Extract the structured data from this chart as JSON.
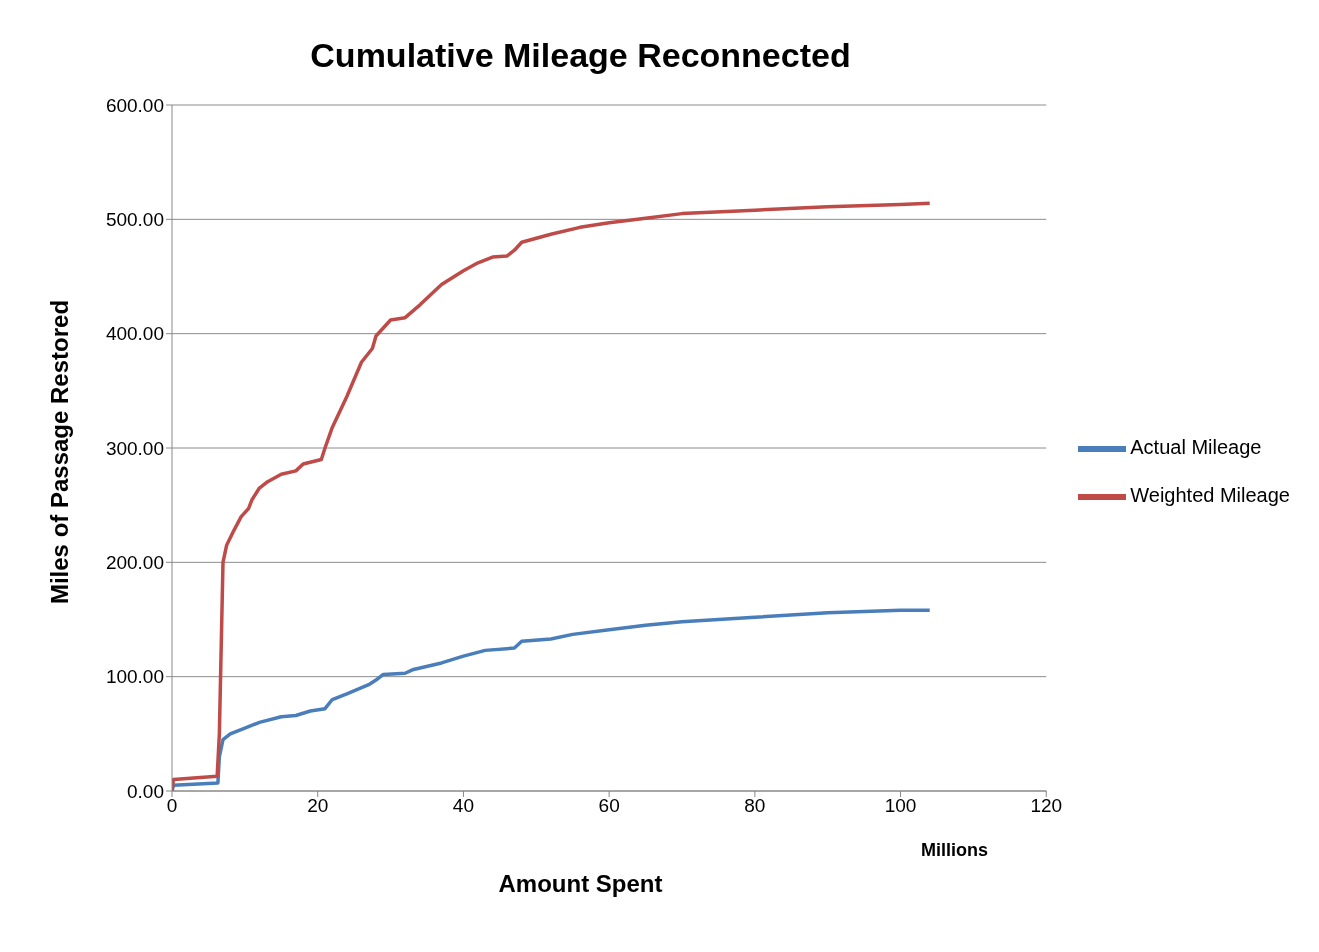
{
  "chart_data": {
    "type": "line",
    "title": "Cumulative Mileage Reconnected",
    "xlabel": "Amount Spent",
    "ylabel": "Miles of Passage Restored",
    "annotations": [
      "Millions"
    ],
    "series": [
      {
        "name": "Actual Mileage",
        "color": "#4a7ebb",
        "x": [
          0,
          0.2,
          6.3,
          6.5,
          7,
          8,
          10,
          12,
          15,
          17,
          19,
          21,
          22,
          24,
          27,
          28,
          29,
          32,
          33,
          37,
          40,
          43,
          47,
          48,
          52,
          55,
          60,
          65,
          70,
          80,
          90,
          100,
          104
        ],
        "values": [
          0,
          5,
          7,
          30,
          45,
          50,
          55,
          60,
          65,
          66,
          70,
          72,
          80,
          85,
          93,
          97,
          102,
          103,
          106,
          112,
          118,
          123,
          125,
          131,
          133,
          137,
          141,
          145,
          148,
          152,
          156,
          158,
          158
        ]
      },
      {
        "name": "Weighted Mileage",
        "color": "#be4b48",
        "x": [
          0,
          0.2,
          6.2,
          6.5,
          7,
          7.5,
          8.5,
          9.5,
          10.5,
          11,
          12,
          13,
          15,
          17,
          18,
          20.5,
          21,
          22,
          24,
          26,
          27.5,
          28,
          30,
          32,
          34,
          37,
          40,
          42,
          44,
          46,
          47,
          48,
          52,
          56,
          60,
          65,
          70,
          80,
          90,
          100,
          104
        ],
        "values": [
          0,
          10,
          13,
          50,
          200,
          215,
          228,
          240,
          247,
          255,
          265,
          270,
          277,
          280,
          286,
          290,
          300,
          318,
          345,
          375,
          387,
          398,
          412,
          414,
          425,
          443,
          455,
          462,
          467,
          468,
          473,
          480,
          487,
          493,
          497,
          501,
          505,
          508,
          511,
          513,
          514
        ]
      }
    ],
    "xlim": [
      0,
      120
    ],
    "xticks": [
      0,
      20,
      40,
      60,
      80,
      100,
      120
    ],
    "ylim": [
      0,
      600
    ],
    "yticks": [
      {
        "value": 0,
        "label": "0.00"
      },
      {
        "value": 100,
        "label": "100.00"
      },
      {
        "value": 200,
        "label": "200.00"
      },
      {
        "value": 300,
        "label": "300.00"
      },
      {
        "value": 400,
        "label": "400.00"
      },
      {
        "value": 500,
        "label": "500.00"
      },
      {
        "value": 600,
        "label": "600.00"
      }
    ],
    "grid": "y",
    "legend": "right",
    "marker": "none",
    "line_style": "solid"
  }
}
